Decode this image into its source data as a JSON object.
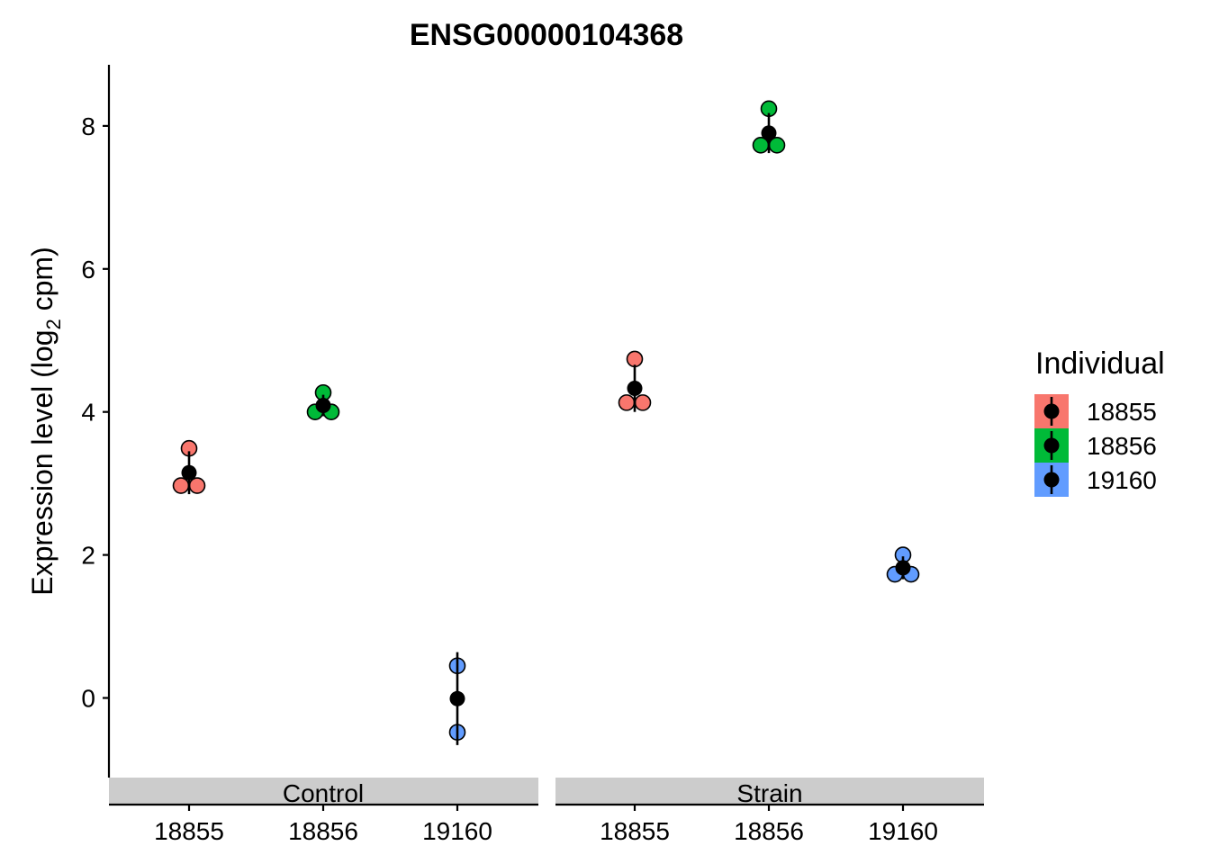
{
  "chart_data": {
    "type": "scatter",
    "title": "ENSG00000104368",
    "ylabel": {
      "prefix": "Expression level (log",
      "subscript": "2",
      "suffix": " cpm)"
    },
    "xlabel": "",
    "ylim": [
      -1.1,
      8.85
    ],
    "yticks": [
      0,
      2,
      4,
      6,
      8
    ],
    "facets": [
      "Control",
      "Strain"
    ],
    "categories": [
      "18855",
      "18856",
      "19160"
    ],
    "legend": {
      "title": "Individual",
      "position": "right"
    },
    "series": [
      {
        "name": "18855",
        "color": "#F8766D",
        "panels": {
          "Control": {
            "points": [
              3.49,
              2.97,
              2.97
            ],
            "mean": 3.15,
            "low": 2.85,
            "high": 3.45
          },
          "Strain": {
            "points": [
              4.74,
              4.13,
              4.13
            ],
            "mean": 4.33,
            "low": 4.0,
            "high": 4.66
          }
        }
      },
      {
        "name": "18856",
        "color": "#00BA38",
        "panels": {
          "Control": {
            "points": [
              4.27,
              4.0,
              4.0
            ],
            "mean": 4.09,
            "low": 3.94,
            "high": 4.24
          },
          "Strain": {
            "points": [
              8.24,
              7.73,
              7.73
            ],
            "mean": 7.9,
            "low": 7.62,
            "high": 8.18
          }
        }
      },
      {
        "name": "19160",
        "color": "#619CFF",
        "panels": {
          "Control": {
            "points": [
              0.45,
              -0.48
            ],
            "mean": -0.01,
            "low": -0.66,
            "high": 0.64
          },
          "Strain": {
            "points": [
              2.0,
              1.73,
              1.73
            ],
            "mean": 1.82,
            "low": 1.66,
            "high": 1.98
          }
        }
      }
    ]
  }
}
